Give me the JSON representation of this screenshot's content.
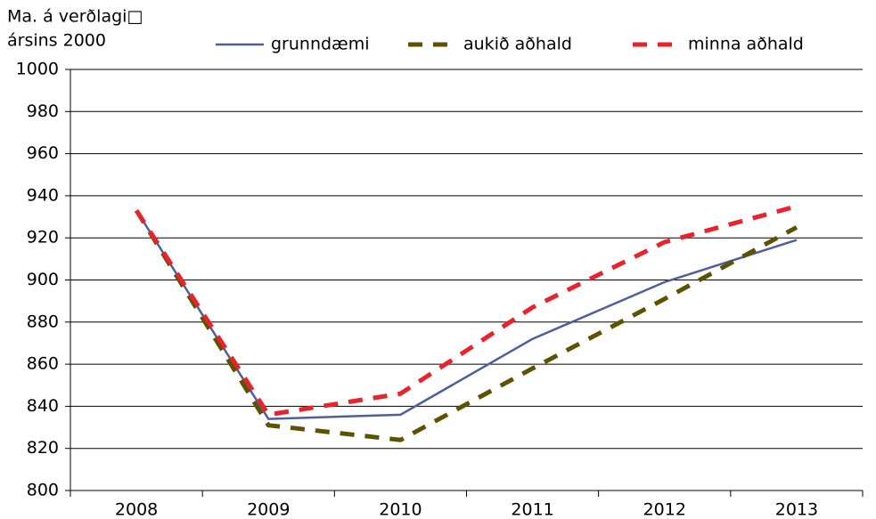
{
  "chart_data": {
    "type": "line",
    "y_label": [
      "Ma. á verðlagi□",
      "ársins 2000"
    ],
    "categories": [
      "2008",
      "2009",
      "2010",
      "2011",
      "2012",
      "2013"
    ],
    "series": [
      {
        "name": "grunndæmi",
        "color": "#4d5f9d",
        "values": [
          933,
          834,
          836,
          872,
          899,
          919
        ]
      },
      {
        "name": "aukið aðhald",
        "color": "#5c5200",
        "values": [
          933,
          831,
          824,
          858,
          891,
          925
        ]
      },
      {
        "name": "minna aðhald",
        "color": "#e8232b",
        "values": [
          933,
          836,
          846,
          887,
          918,
          935
        ]
      }
    ],
    "ylim": [
      800,
      1000
    ],
    "yticks": [
      800,
      820,
      840,
      860,
      880,
      900,
      920,
      940,
      960,
      980,
      1000
    ],
    "grid": true
  }
}
